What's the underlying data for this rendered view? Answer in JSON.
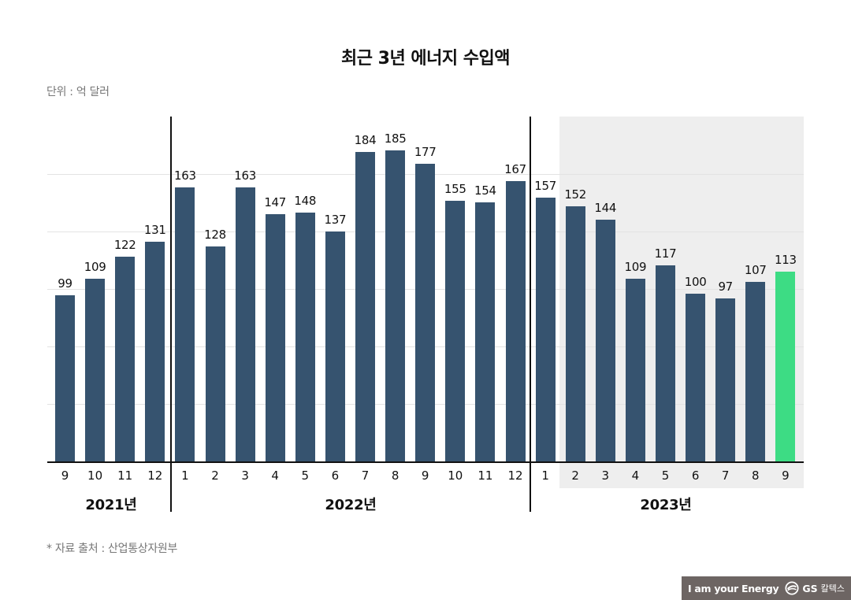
{
  "title": "최근 3년 에너지 수입액",
  "unit": "단위 : 억 달러",
  "source": "* 자료 출처 : 산업통상자원부",
  "brand": {
    "tagline": "I am your Energy",
    "logo_text": "GS",
    "logo_korean": "칼텍스"
  },
  "colors": {
    "bar": "#36536f",
    "highlight_bar": "#3ddc84",
    "highlight_bg": "#eeeeee",
    "grid": "#e3e3e3"
  },
  "chart_data": {
    "type": "bar",
    "title": "최근 3년 에너지 수입액",
    "subtitle": "단위 : 억 달러",
    "xlabel": "",
    "ylabel": "억 달러",
    "ylim": [
      0,
      205
    ],
    "grid": true,
    "legend": null,
    "groups": [
      {
        "label": "2021년",
        "months": [
          "9",
          "10",
          "11",
          "12"
        ]
      },
      {
        "label": "2022년",
        "months": [
          "1",
          "2",
          "3",
          "4",
          "5",
          "6",
          "7",
          "8",
          "9",
          "10",
          "11",
          "12"
        ]
      },
      {
        "label": "2023년",
        "months": [
          "1",
          "2",
          "3",
          "4",
          "5",
          "6",
          "7",
          "8",
          "9"
        ]
      }
    ],
    "categories": [
      "2021-09",
      "2021-10",
      "2021-11",
      "2021-12",
      "2022-01",
      "2022-02",
      "2022-03",
      "2022-04",
      "2022-05",
      "2022-06",
      "2022-07",
      "2022-08",
      "2022-09",
      "2022-10",
      "2022-11",
      "2022-12",
      "2023-01",
      "2023-02",
      "2023-03",
      "2023-04",
      "2023-05",
      "2023-06",
      "2023-07",
      "2023-08",
      "2023-09"
    ],
    "month_labels": [
      "9",
      "10",
      "11",
      "12",
      "1",
      "2",
      "3",
      "4",
      "5",
      "6",
      "7",
      "8",
      "9",
      "10",
      "11",
      "12",
      "1",
      "2",
      "3",
      "4",
      "5",
      "6",
      "7",
      "8",
      "9"
    ],
    "values": [
      99,
      109,
      122,
      131,
      163,
      128,
      163,
      147,
      148,
      137,
      184,
      185,
      177,
      155,
      154,
      167,
      157,
      152,
      144,
      109,
      117,
      100,
      97,
      107,
      113
    ],
    "highlighted_index": 24,
    "annotations": [
      "2023-02 to 2023-09 shaded gray background"
    ]
  }
}
